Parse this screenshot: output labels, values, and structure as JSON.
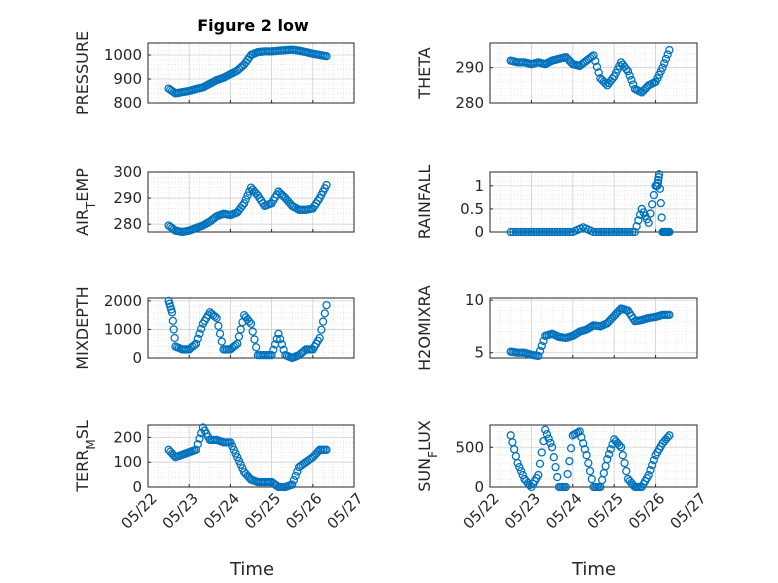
{
  "title": "Figure 2 low",
  "xlabel": "Time",
  "marker_color": "#0072BD",
  "chart_data": [
    {
      "type": "scatter",
      "ylabel": "PRESSURE",
      "ylim": [
        800,
        1050
      ],
      "yticks": [
        "800",
        "900",
        "1000"
      ],
      "xaxis_labels": false,
      "series": [
        {
          "x": [
            "05/22 12:00",
            "05/22 16:00",
            "05/22 20:00",
            "05/23 00:00",
            "05/23 04:00",
            "05/23 08:00",
            "05/23 12:00",
            "05/23 16:00",
            "05/23 20:00",
            "05/24 00:00",
            "05/24 04:00",
            "05/24 08:00",
            "05/24 12:00",
            "05/24 16:00",
            "05/24 20:00",
            "05/25 00:00",
            "05/25 04:00",
            "05/25 08:00",
            "05/25 12:00",
            "05/25 16:00",
            "05/25 20:00",
            "05/26 00:00",
            "05/26 04:00",
            "05/26 08:00"
          ],
          "y": [
            860,
            840,
            845,
            850,
            858,
            865,
            880,
            895,
            905,
            920,
            935,
            960,
            1000,
            1012,
            1015,
            1015,
            1018,
            1020,
            1022,
            1018,
            1012,
            1005,
            1000,
            995
          ]
        }
      ]
    },
    {
      "type": "scatter",
      "ylabel": "THETA",
      "ylim": [
        280,
        297
      ],
      "yticks": [
        "280",
        "290"
      ],
      "xaxis_labels": false,
      "series": [
        {
          "x": [
            "05/22 12:00",
            "05/22 16:00",
            "05/22 20:00",
            "05/23 00:00",
            "05/23 04:00",
            "05/23 08:00",
            "05/23 12:00",
            "05/23 16:00",
            "05/23 20:00",
            "05/24 00:00",
            "05/24 04:00",
            "05/24 08:00",
            "05/24 12:00",
            "05/24 16:00",
            "05/24 20:00",
            "05/25 00:00",
            "05/25 04:00",
            "05/25 08:00",
            "05/25 12:00",
            "05/25 16:00",
            "05/25 20:00",
            "05/26 00:00",
            "05/26 04:00",
            "05/26 08:00"
          ],
          "y": [
            292,
            291.5,
            291.5,
            291,
            291.5,
            291,
            292,
            292.5,
            293,
            291,
            290.5,
            292,
            293.5,
            287,
            285,
            287.5,
            291.5,
            289,
            284,
            283,
            285,
            286,
            290,
            295
          ]
        }
      ]
    },
    {
      "type": "scatter",
      "ylabel": "AIR_TEMP",
      "ylim": [
        277,
        300
      ],
      "yticks": [
        "280",
        "290",
        "300"
      ],
      "xaxis_labels": false,
      "series": [
        {
          "x": [
            "05/22 12:00",
            "05/22 16:00",
            "05/22 20:00",
            "05/23 00:00",
            "05/23 04:00",
            "05/23 08:00",
            "05/23 12:00",
            "05/23 16:00",
            "05/23 20:00",
            "05/24 00:00",
            "05/24 04:00",
            "05/24 08:00",
            "05/24 12:00",
            "05/24 16:00",
            "05/24 20:00",
            "05/25 00:00",
            "05/25 04:00",
            "05/25 08:00",
            "05/25 12:00",
            "05/25 16:00",
            "05/25 20:00",
            "05/26 00:00",
            "05/26 04:00",
            "05/26 08:00"
          ],
          "y": [
            279.5,
            277.5,
            277,
            277.5,
            278.5,
            279.5,
            281,
            283,
            284,
            283.5,
            284.5,
            288,
            294,
            291,
            287,
            288,
            292.5,
            290,
            287,
            285.5,
            285.5,
            286,
            290,
            295
          ]
        }
      ]
    },
    {
      "type": "scatter",
      "ylabel": "RAINFALL",
      "ylim": [
        0,
        1.3
      ],
      "yticks": [
        "0",
        "0.5",
        "1"
      ],
      "xaxis_labels": false,
      "series": [
        {
          "x": [
            "05/22 12:00",
            "05/22 18:00",
            "05/23 00:00",
            "05/23 06:00",
            "05/23 12:00",
            "05/23 18:00",
            "05/24 00:00",
            "05/24 06:00",
            "05/24 12:00",
            "05/24 18:00",
            "05/25 00:00",
            "05/25 06:00",
            "05/25 12:00",
            "05/25 16:00",
            "05/25 20:00",
            "05/26 00:00",
            "05/26 01:00",
            "05/26 02:00",
            "05/26 04:00",
            "05/26 06:00",
            "05/26 08:00"
          ],
          "y": [
            0,
            0,
            0,
            0,
            0,
            0,
            0,
            0.1,
            0,
            0,
            0,
            0,
            0,
            0.5,
            0.2,
            1.0,
            1.0,
            1.25,
            0,
            0,
            0
          ]
        }
      ]
    },
    {
      "type": "scatter",
      "ylabel": "MIXDEPTH",
      "ylim": [
        0,
        2100
      ],
      "yticks": [
        "0",
        "1000",
        "2000"
      ],
      "xaxis_labels": false,
      "series": [
        {
          "x": [
            "05/22 12:00",
            "05/22 14:00",
            "05/22 16:00",
            "05/22 20:00",
            "05/23 00:00",
            "05/23 04:00",
            "05/23 08:00",
            "05/23 12:00",
            "05/23 16:00",
            "05/23 20:00",
            "05/24 00:00",
            "05/24 04:00",
            "05/24 08:00",
            "05/24 12:00",
            "05/24 16:00",
            "05/24 20:00",
            "05/25 00:00",
            "05/25 04:00",
            "05/25 08:00",
            "05/25 12:00",
            "05/25 16:00",
            "05/25 20:00",
            "05/26 00:00",
            "05/26 04:00",
            "05/26 08:00"
          ],
          "y": [
            2000,
            1600,
            400,
            300,
            300,
            500,
            1200,
            1600,
            1400,
            300,
            300,
            500,
            1500,
            1200,
            100,
            100,
            100,
            850,
            100,
            0,
            100,
            300,
            300,
            700,
            1850
          ]
        }
      ]
    },
    {
      "type": "scatter",
      "ylabel": "H2OMIXRA",
      "ylim": [
        4.5,
        10.2
      ],
      "yticks": [
        "5",
        "10"
      ],
      "xaxis_labels": false,
      "series": [
        {
          "x": [
            "05/22 12:00",
            "05/22 16:00",
            "05/22 20:00",
            "05/23 00:00",
            "05/23 04:00",
            "05/23 08:00",
            "05/23 12:00",
            "05/23 16:00",
            "05/23 20:00",
            "05/24 00:00",
            "05/24 04:00",
            "05/24 08:00",
            "05/24 12:00",
            "05/24 16:00",
            "05/24 20:00",
            "05/25 00:00",
            "05/25 04:00",
            "05/25 08:00",
            "05/25 12:00",
            "05/25 16:00",
            "05/25 20:00",
            "05/26 00:00",
            "05/26 04:00",
            "05/26 08:00"
          ],
          "y": [
            5.1,
            5.0,
            5.0,
            4.8,
            4.7,
            6.6,
            6.8,
            6.5,
            6.4,
            6.6,
            7.0,
            7.2,
            7.6,
            7.5,
            7.8,
            8.5,
            9.2,
            9.0,
            8.0,
            8.1,
            8.3,
            8.4,
            8.6,
            8.6
          ]
        }
      ]
    },
    {
      "type": "scatter",
      "ylabel": "TERR_MSL",
      "ylim": [
        0,
        250
      ],
      "yticks": [
        "0",
        "100",
        "200"
      ],
      "xaxis_labels": true,
      "series": [
        {
          "x": [
            "05/22 12:00",
            "05/22 16:00",
            "05/22 20:00",
            "05/23 00:00",
            "05/23 04:00",
            "05/23 08:00",
            "05/23 12:00",
            "05/23 16:00",
            "05/23 20:00",
            "05/24 00:00",
            "05/24 04:00",
            "05/24 08:00",
            "05/24 12:00",
            "05/24 16:00",
            "05/24 20:00",
            "05/25 00:00",
            "05/25 04:00",
            "05/25 08:00",
            "05/25 12:00",
            "05/25 16:00",
            "05/25 20:00",
            "05/26 00:00",
            "05/26 04:00",
            "05/26 08:00"
          ],
          "y": [
            150,
            120,
            130,
            140,
            150,
            240,
            190,
            190,
            180,
            180,
            120,
            60,
            30,
            20,
            20,
            20,
            0,
            0,
            10,
            80,
            100,
            120,
            150,
            150
          ]
        }
      ]
    },
    {
      "type": "scatter",
      "ylabel": "SUN_FLUX",
      "ylim": [
        0,
        780
      ],
      "yticks": [
        "0",
        "500"
      ],
      "xaxis_labels": true,
      "series": [
        {
          "x": [
            "05/22 12:00",
            "05/22 16:00",
            "05/22 20:00",
            "05/23 00:00",
            "05/23 04:00",
            "05/23 08:00",
            "05/23 12:00",
            "05/23 16:00",
            "05/23 20:00",
            "05/24 00:00",
            "05/24 04:00",
            "05/24 08:00",
            "05/24 12:00",
            "05/24 16:00",
            "05/24 20:00",
            "05/25 00:00",
            "05/25 04:00",
            "05/25 08:00",
            "05/25 12:00",
            "05/25 16:00",
            "05/25 20:00",
            "05/26 00:00",
            "05/26 04:00",
            "05/26 08:00"
          ],
          "y": [
            650,
            300,
            100,
            0,
            150,
            720,
            500,
            0,
            0,
            650,
            700,
            400,
            0,
            0,
            350,
            600,
            500,
            100,
            0,
            0,
            150,
            400,
            550,
            650
          ]
        }
      ]
    }
  ],
  "x_ticks": [
    "05/22",
    "05/23",
    "05/24",
    "05/25",
    "05/26",
    "05/27"
  ]
}
